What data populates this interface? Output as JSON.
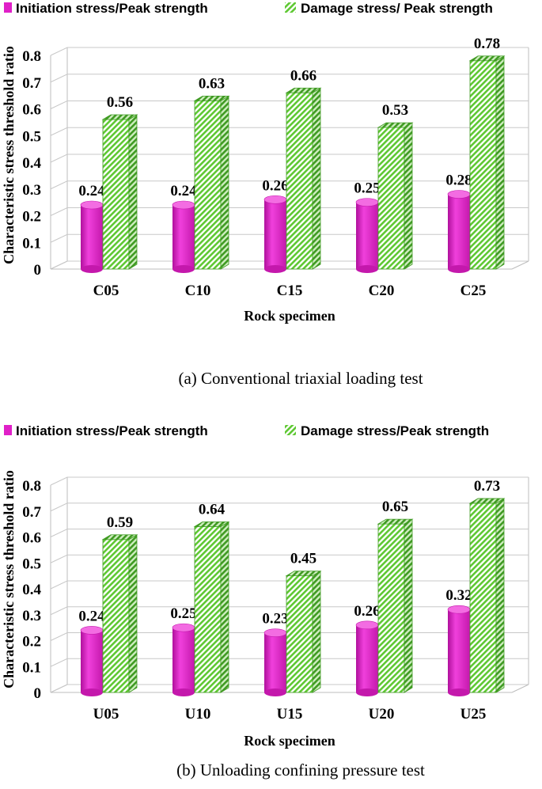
{
  "chart_data": [
    {
      "type": "bar",
      "caption": "(a) Conventional triaxial loading test",
      "categories": [
        "C05",
        "C10",
        "C15",
        "C20",
        "C25"
      ],
      "series": [
        {
          "name": "Initiation stress/Peak strength",
          "values": [
            0.24,
            0.24,
            0.26,
            0.25,
            0.28
          ],
          "labels": [
            "0.24",
            "0.24",
            "0.26",
            "0.25",
            "0.28"
          ]
        },
        {
          "name": "Damage stress/ Peak strength",
          "values": [
            0.56,
            0.63,
            0.66,
            0.53,
            0.78
          ],
          "labels": [
            "0.56",
            "0.63",
            "0.66",
            "0.53",
            "0.78"
          ]
        }
      ],
      "xlabel": "Rock specimen",
      "ylabel": "Characteristic stress threshold ratio",
      "ylim": [
        0,
        0.8
      ],
      "yticks": [
        "0",
        "0.1",
        "0.2",
        "0.3",
        "0.4",
        "0.5",
        "0.6",
        "0.7",
        "0.8"
      ],
      "grid": true,
      "legend": "top",
      "colors": {
        "initiation": "#e020c8",
        "damage": "#5ec832"
      }
    },
    {
      "type": "bar",
      "caption": "(b) Unloading confining pressure test",
      "categories": [
        "U05",
        "U10",
        "U15",
        "U20",
        "U25"
      ],
      "series": [
        {
          "name": "Initiation stress/Peak strength",
          "values": [
            0.24,
            0.25,
            0.23,
            0.26,
            0.32
          ],
          "labels": [
            "0.24",
            "0.25",
            "0.23",
            "0.26",
            "0.32"
          ]
        },
        {
          "name": "Damage stress/Peak strength",
          "values": [
            0.59,
            0.64,
            0.45,
            0.65,
            0.73
          ],
          "labels": [
            "0.59",
            "0.64",
            "0.45",
            "0.65",
            "0.73"
          ]
        }
      ],
      "xlabel": "Rock specimen",
      "ylabel": "Characteristic stress threshold ratio",
      "ylim": [
        0,
        0.8
      ],
      "yticks": [
        "0",
        "0.1",
        "0.2",
        "0.3",
        "0.4",
        "0.5",
        "0.6",
        "0.7",
        "0.8"
      ],
      "grid": true,
      "legend": "top",
      "colors": {
        "initiation": "#e020c8",
        "damage": "#5ec832"
      }
    }
  ]
}
